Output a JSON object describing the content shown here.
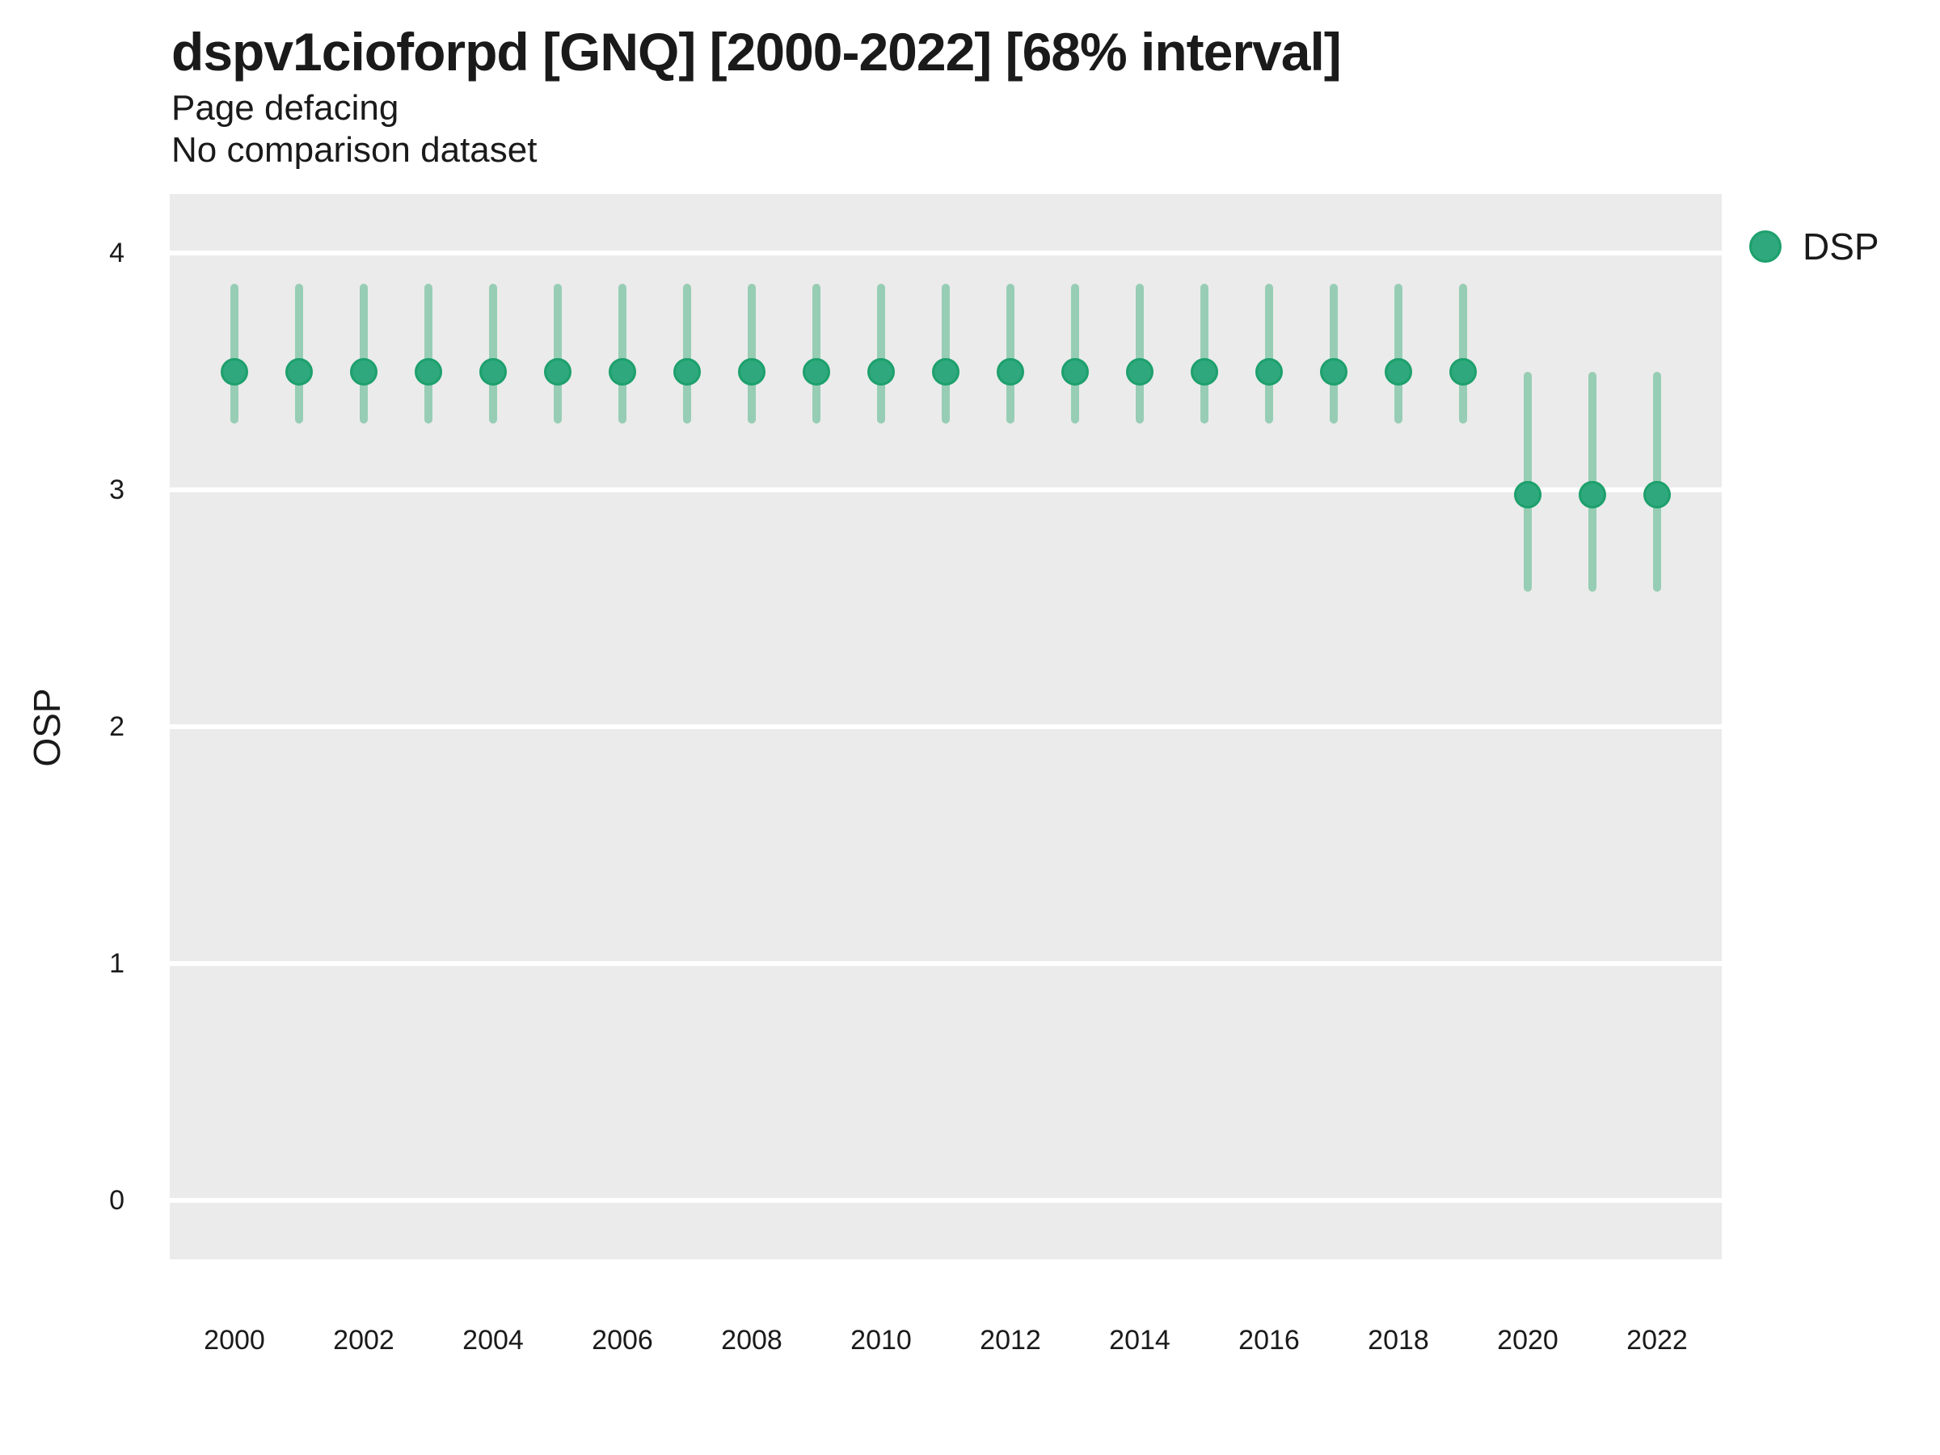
{
  "chart_data": {
    "type": "scatter",
    "variant": "pointrange-errorbar",
    "title": "dspv1cioforpd [GNQ] [2000-2022] [68% interval]",
    "subtitle": "Page defacing",
    "note": "No comparison dataset",
    "xlabel": "",
    "ylabel": "OSP",
    "interval": "68%",
    "x": [
      2000,
      2001,
      2002,
      2003,
      2004,
      2005,
      2006,
      2007,
      2008,
      2009,
      2010,
      2011,
      2012,
      2013,
      2014,
      2015,
      2016,
      2017,
      2018,
      2019,
      2020,
      2021,
      2022
    ],
    "series": [
      {
        "name": "DSP",
        "values": [
          3.5,
          3.5,
          3.5,
          3.5,
          3.5,
          3.5,
          3.5,
          3.5,
          3.5,
          3.5,
          3.5,
          3.5,
          3.5,
          3.5,
          3.5,
          3.5,
          3.5,
          3.5,
          3.5,
          3.5,
          2.98,
          2.98,
          2.98
        ],
        "lower": [
          3.28,
          3.28,
          3.28,
          3.28,
          3.28,
          3.28,
          3.28,
          3.28,
          3.28,
          3.28,
          3.28,
          3.28,
          3.28,
          3.28,
          3.28,
          3.28,
          3.28,
          3.28,
          3.28,
          3.28,
          2.57,
          2.57,
          2.57
        ],
        "upper": [
          3.87,
          3.87,
          3.87,
          3.87,
          3.87,
          3.87,
          3.87,
          3.87,
          3.87,
          3.87,
          3.87,
          3.87,
          3.87,
          3.87,
          3.87,
          3.87,
          3.87,
          3.87,
          3.87,
          3.87,
          3.5,
          3.5,
          3.5
        ]
      }
    ],
    "ylim": [
      -0.25,
      4.25
    ],
    "yticks": [
      0,
      1,
      2,
      3,
      4
    ],
    "xticks": [
      2000,
      2002,
      2004,
      2006,
      2008,
      2010,
      2012,
      2014,
      2016,
      2018,
      2020,
      2022
    ],
    "grid": "horizontal major gridlines, white on grey panel",
    "legend_position": "right",
    "colors": {
      "point": "#2FA87E",
      "point_edge": "#1DA06C",
      "errorbar": "#97CDB5",
      "panel_bg": "#EBEBEB",
      "gridline": "#FFFFFF",
      "text": "#1A1A1A"
    }
  }
}
